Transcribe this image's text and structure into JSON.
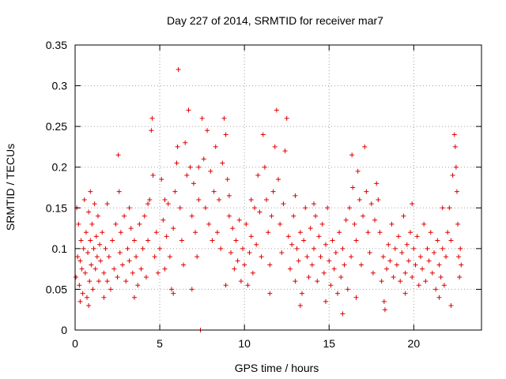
{
  "chart_data": {
    "type": "scatter",
    "title": "Day 227 of 2014, SRMTID for receiver mar7",
    "xlabel": "GPS time / hours",
    "ylabel": "SRMTID / TECUs",
    "xlim": [
      0,
      24
    ],
    "ylim": [
      0,
      0.35
    ],
    "xticks": [
      0,
      5,
      10,
      15,
      20
    ],
    "xtick_labels": [
      "0",
      "5",
      "10",
      "15",
      "20"
    ],
    "yticks": [
      0,
      0.05,
      0.1,
      0.15,
      0.2,
      0.25,
      0.3,
      0.35
    ],
    "ytick_labels": [
      "0",
      "0.05",
      "0.1",
      "0.15",
      "0.2",
      "0.25",
      "0.3",
      "0.35"
    ],
    "grid": true,
    "marker": "+",
    "color": "#e00000",
    "series": [
      {
        "name": "SRMTID",
        "points": [
          [
            0.05,
            0.065
          ],
          [
            0.1,
            0.15
          ],
          [
            0.15,
            0.09
          ],
          [
            0.2,
            0.13
          ],
          [
            0.25,
            0.055
          ],
          [
            0.3,
            0.085
          ],
          [
            0.35,
            0.11
          ],
          [
            0.4,
            0.075
          ],
          [
            0.45,
            0.045
          ],
          [
            0.5,
            0.1
          ],
          [
            0.55,
            0.16
          ],
          [
            0.6,
            0.07
          ],
          [
            0.65,
            0.12
          ],
          [
            0.7,
            0.04
          ],
          [
            0.75,
            0.095
          ],
          [
            0.8,
            0.145
          ],
          [
            0.85,
            0.06
          ],
          [
            0.9,
            0.11
          ],
          [
            0.95,
            0.08
          ],
          [
            1.0,
            0.13
          ],
          [
            1.05,
            0.05
          ],
          [
            1.1,
            0.1
          ],
          [
            1.15,
            0.155
          ],
          [
            1.2,
            0.075
          ],
          [
            1.25,
            0.115
          ],
          [
            1.3,
            0.09
          ],
          [
            1.35,
            0.14
          ],
          [
            1.4,
            0.06
          ],
          [
            1.45,
            0.105
          ],
          [
            1.5,
            0.085
          ],
          [
            1.6,
            0.12
          ],
          [
            1.7,
            0.07
          ],
          [
            1.8,
            0.1
          ],
          [
            1.9,
            0.06
          ],
          [
            2.0,
            0.09
          ],
          [
            2.1,
            0.05
          ],
          [
            2.2,
            0.11
          ],
          [
            2.3,
            0.075
          ],
          [
            2.4,
            0.13
          ],
          [
            2.5,
            0.065
          ],
          [
            2.55,
            0.215
          ],
          [
            2.6,
            0.17
          ],
          [
            2.65,
            0.095
          ],
          [
            2.7,
            0.12
          ],
          [
            2.8,
            0.08
          ],
          [
            2.9,
            0.14
          ],
          [
            3.0,
            0.06
          ],
          [
            3.1,
            0.1
          ],
          [
            3.2,
            0.085
          ],
          [
            3.3,
            0.125
          ],
          [
            3.4,
            0.07
          ],
          [
            3.5,
            0.11
          ],
          [
            3.6,
            0.09
          ],
          [
            3.7,
            0.055
          ],
          [
            3.8,
            0.13
          ],
          [
            3.9,
            0.075
          ],
          [
            4.0,
            0.1
          ],
          [
            4.1,
            0.14
          ],
          [
            4.2,
            0.065
          ],
          [
            4.3,
            0.11
          ],
          [
            4.4,
            0.16
          ],
          [
            4.5,
            0.245
          ],
          [
            4.55,
            0.26
          ],
          [
            4.6,
            0.19
          ],
          [
            4.7,
            0.09
          ],
          [
            4.8,
            0.12
          ],
          [
            4.9,
            0.07
          ],
          [
            5.0,
            0.1
          ],
          [
            5.1,
            0.185
          ],
          [
            5.2,
            0.135
          ],
          [
            5.3,
            0.075
          ],
          [
            5.4,
            0.115
          ],
          [
            5.5,
            0.155
          ],
          [
            5.6,
            0.09
          ],
          [
            5.7,
            0.05
          ],
          [
            5.8,
            0.125
          ],
          [
            5.9,
            0.17
          ],
          [
            6.0,
            0.205
          ],
          [
            6.05,
            0.225
          ],
          [
            6.1,
            0.32
          ],
          [
            6.2,
            0.15
          ],
          [
            6.3,
            0.11
          ],
          [
            6.4,
            0.08
          ],
          [
            6.5,
            0.23
          ],
          [
            6.6,
            0.19
          ],
          [
            6.7,
            0.27
          ],
          [
            6.8,
            0.2
          ],
          [
            6.9,
            0.14
          ],
          [
            7.0,
            0.18
          ],
          [
            7.1,
            0.12
          ],
          [
            7.2,
            0.09
          ],
          [
            7.3,
            0.16
          ],
          [
            7.4,
            0.0
          ],
          [
            7.5,
            0.26
          ],
          [
            7.6,
            0.21
          ],
          [
            7.7,
            0.15
          ],
          [
            7.8,
            0.245
          ],
          [
            7.9,
            0.13
          ],
          [
            8.0,
            0.195
          ],
          [
            8.1,
            0.11
          ],
          [
            8.2,
            0.17
          ],
          [
            8.3,
            0.225
          ],
          [
            8.4,
            0.12
          ],
          [
            8.5,
            0.16
          ],
          [
            8.6,
            0.1
          ],
          [
            8.7,
            0.205
          ],
          [
            8.8,
            0.26
          ],
          [
            8.9,
            0.24
          ],
          [
            9.0,
            0.185
          ],
          [
            9.1,
            0.14
          ],
          [
            9.2,
            0.095
          ],
          [
            9.3,
            0.125
          ],
          [
            9.4,
            0.075
          ],
          [
            9.5,
            0.11
          ],
          [
            9.6,
            0.085
          ],
          [
            9.7,
            0.135
          ],
          [
            9.8,
            0.06
          ],
          [
            9.9,
            0.1
          ],
          [
            10.0,
            0.08
          ],
          [
            10.1,
            0.13
          ],
          [
            10.2,
            0.055
          ],
          [
            10.3,
            0.095
          ],
          [
            10.4,
            0.115
          ],
          [
            10.5,
            0.07
          ],
          [
            10.6,
            0.15
          ],
          [
            10.7,
            0.105
          ],
          [
            10.8,
            0.19
          ],
          [
            10.9,
            0.145
          ],
          [
            11.0,
            0.09
          ],
          [
            11.1,
            0.24
          ],
          [
            11.2,
            0.2
          ],
          [
            11.3,
            0.16
          ],
          [
            11.4,
            0.12
          ],
          [
            11.5,
            0.08
          ],
          [
            11.6,
            0.14
          ],
          [
            11.7,
            0.17
          ],
          [
            11.8,
            0.225
          ],
          [
            11.9,
            0.27
          ],
          [
            12.0,
            0.185
          ],
          [
            12.1,
            0.13
          ],
          [
            12.2,
            0.095
          ],
          [
            12.3,
            0.155
          ],
          [
            12.4,
            0.22
          ],
          [
            12.5,
            0.26
          ],
          [
            12.6,
            0.115
          ],
          [
            12.7,
            0.075
          ],
          [
            12.8,
            0.105
          ],
          [
            12.9,
            0.14
          ],
          [
            13.0,
            0.06
          ],
          [
            13.1,
            0.1
          ],
          [
            13.2,
            0.085
          ],
          [
            13.3,
            0.12
          ],
          [
            13.4,
            0.045
          ],
          [
            13.5,
            0.11
          ],
          [
            13.6,
            0.15
          ],
          [
            13.7,
            0.09
          ],
          [
            13.8,
            0.065
          ],
          [
            13.9,
            0.125
          ],
          [
            14.0,
            0.08
          ],
          [
            14.1,
            0.1
          ],
          [
            14.2,
            0.14
          ],
          [
            14.3,
            0.06
          ],
          [
            14.4,
            0.115
          ],
          [
            14.5,
            0.09
          ],
          [
            14.6,
            0.13
          ],
          [
            14.7,
            0.07
          ],
          [
            14.8,
            0.105
          ],
          [
            14.9,
            0.15
          ],
          [
            15.0,
            0.085
          ],
          [
            15.1,
            0.055
          ],
          [
            15.2,
            0.11
          ],
          [
            15.3,
            0.075
          ],
          [
            15.4,
            0.095
          ],
          [
            15.5,
            0.045
          ],
          [
            15.6,
            0.12
          ],
          [
            15.7,
            0.065
          ],
          [
            15.8,
            0.1
          ],
          [
            15.9,
            0.08
          ],
          [
            16.0,
            0.135
          ],
          [
            16.1,
            0.05
          ],
          [
            16.2,
            0.15
          ],
          [
            16.3,
            0.09
          ],
          [
            16.35,
            0.215
          ],
          [
            16.4,
            0.175
          ],
          [
            16.5,
            0.13
          ],
          [
            16.6,
            0.11
          ],
          [
            16.7,
            0.195
          ],
          [
            16.8,
            0.16
          ],
          [
            16.9,
            0.08
          ],
          [
            17.0,
            0.14
          ],
          [
            17.1,
            0.225
          ],
          [
            17.2,
            0.17
          ],
          [
            17.3,
            0.12
          ],
          [
            17.4,
            0.095
          ],
          [
            17.5,
            0.155
          ],
          [
            17.6,
            0.07
          ],
          [
            17.7,
            0.135
          ],
          [
            17.8,
            0.18
          ],
          [
            17.9,
            0.16
          ],
          [
            18.0,
            0.12
          ],
          [
            18.1,
            0.06
          ],
          [
            18.2,
            0.09
          ],
          [
            18.25,
            0.035
          ],
          [
            18.3,
            0.025
          ],
          [
            18.4,
            0.075
          ],
          [
            18.5,
            0.105
          ],
          [
            18.6,
            0.085
          ],
          [
            18.7,
            0.13
          ],
          [
            18.8,
            0.065
          ],
          [
            18.9,
            0.1
          ],
          [
            19.0,
            0.08
          ],
          [
            19.1,
            0.115
          ],
          [
            19.2,
            0.06
          ],
          [
            19.3,
            0.095
          ],
          [
            19.4,
            0.14
          ],
          [
            19.5,
            0.07
          ],
          [
            19.6,
            0.105
          ],
          [
            19.7,
            0.085
          ],
          [
            19.8,
            0.12
          ],
          [
            19.9,
            0.065
          ],
          [
            20.0,
            0.1
          ],
          [
            20.1,
            0.08
          ],
          [
            20.2,
            0.115
          ],
          [
            20.3,
            0.055
          ],
          [
            20.4,
            0.09
          ],
          [
            20.5,
            0.075
          ],
          [
            20.6,
            0.13
          ],
          [
            20.7,
            0.06
          ],
          [
            20.8,
            0.1
          ],
          [
            20.9,
            0.085
          ],
          [
            21.0,
            0.12
          ],
          [
            21.1,
            0.07
          ],
          [
            21.2,
            0.095
          ],
          [
            21.3,
            0.05
          ],
          [
            21.4,
            0.11
          ],
          [
            21.5,
            0.08
          ],
          [
            21.6,
            0.065
          ],
          [
            21.7,
            0.1
          ],
          [
            21.8,
            0.055
          ],
          [
            21.9,
            0.09
          ],
          [
            22.0,
            0.12
          ],
          [
            22.1,
            0.15
          ],
          [
            22.2,
            0.11
          ],
          [
            22.3,
            0.19
          ],
          [
            22.4,
            0.24
          ],
          [
            22.45,
            0.225
          ],
          [
            22.5,
            0.2
          ],
          [
            22.55,
            0.17
          ],
          [
            22.6,
            0.13
          ],
          [
            22.65,
            0.09
          ],
          [
            22.7,
            0.065
          ],
          [
            22.75,
            0.1
          ],
          [
            22.8,
            0.08
          ],
          [
            0.3,
            0.035
          ],
          [
            0.8,
            0.03
          ],
          [
            1.7,
            0.04
          ],
          [
            3.5,
            0.04
          ],
          [
            5.8,
            0.045
          ],
          [
            6.9,
            0.05
          ],
          [
            8.9,
            0.055
          ],
          [
            11.5,
            0.045
          ],
          [
            13.3,
            0.03
          ],
          [
            14.8,
            0.035
          ],
          [
            15.8,
            0.02
          ],
          [
            16.6,
            0.04
          ],
          [
            19.5,
            0.045
          ],
          [
            21.5,
            0.04
          ],
          [
            22.2,
            0.03
          ],
          [
            0.9,
            0.17
          ],
          [
            1.9,
            0.155
          ],
          [
            3.2,
            0.15
          ],
          [
            4.3,
            0.155
          ],
          [
            5.3,
            0.16
          ],
          [
            7.3,
            0.2
          ],
          [
            9.1,
            0.165
          ],
          [
            10.4,
            0.16
          ],
          [
            13.0,
            0.165
          ],
          [
            14.1,
            0.155
          ],
          [
            19.9,
            0.155
          ],
          [
            21.7,
            0.15
          ]
        ]
      }
    ]
  }
}
